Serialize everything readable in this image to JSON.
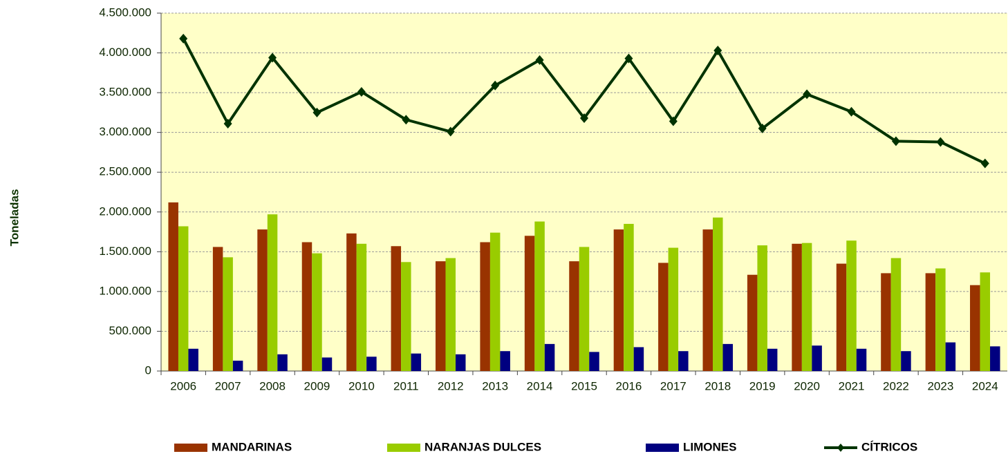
{
  "chart_data": {
    "type": "bar_line",
    "y_label": "Toneladas",
    "categories": [
      "2006",
      "2007",
      "2008",
      "2009",
      "2010",
      "2011",
      "2012",
      "2013",
      "2014",
      "2015",
      "2016",
      "2017",
      "2018",
      "2019",
      "2020",
      "2021",
      "2022",
      "2023",
      "2024"
    ],
    "series": [
      {
        "name": "MANDARINAS",
        "color": "#993300",
        "kind": "bar",
        "values": [
          2120000,
          1560000,
          1780000,
          1620000,
          1730000,
          1570000,
          1380000,
          1620000,
          1700000,
          1380000,
          1780000,
          1360000,
          1780000,
          1210000,
          1600000,
          1350000,
          1230000,
          1230000,
          1080000
        ]
      },
      {
        "name": "NARANJAS DULCES",
        "color": "#99cc00",
        "kind": "bar",
        "values": [
          1820000,
          1430000,
          1970000,
          1480000,
          1600000,
          1370000,
          1420000,
          1740000,
          1880000,
          1560000,
          1850000,
          1550000,
          1930000,
          1580000,
          1610000,
          1640000,
          1420000,
          1290000,
          1240000
        ]
      },
      {
        "name": "LIMONES",
        "color": "#000080",
        "kind": "bar",
        "values": [
          280000,
          130000,
          210000,
          170000,
          180000,
          220000,
          210000,
          250000,
          340000,
          240000,
          300000,
          250000,
          340000,
          280000,
          320000,
          280000,
          250000,
          360000,
          310000
        ]
      },
      {
        "name": "CÍTRICOS",
        "color": "#003300",
        "kind": "line",
        "values": [
          4180000,
          3110000,
          3940000,
          3250000,
          3510000,
          3160000,
          3010000,
          3590000,
          3910000,
          3180000,
          3930000,
          3140000,
          4030000,
          3050000,
          3480000,
          3260000,
          2890000,
          2880000,
          2610000
        ]
      }
    ],
    "ylim": [
      0,
      4500000
    ],
    "yticks": [
      0,
      {
        "value": 500000,
        "label": "500.000"
      },
      {
        "value": 1000000,
        "label": "1.000.000"
      },
      {
        "value": 1500000,
        "label": "1.500.000"
      },
      {
        "value": 2000000,
        "label": "2.000.000"
      },
      {
        "value": 2500000,
        "label": "2.500.000"
      },
      {
        "value": 3000000,
        "label": "3.000.000"
      },
      {
        "value": 3500000,
        "label": "3.500.000"
      },
      {
        "value": 4000000,
        "label": "4.000.000"
      },
      {
        "value": 4500000,
        "label": "4.500.000"
      }
    ],
    "grid": true,
    "plot_background": "#ffffc8",
    "legend": "bottom"
  }
}
